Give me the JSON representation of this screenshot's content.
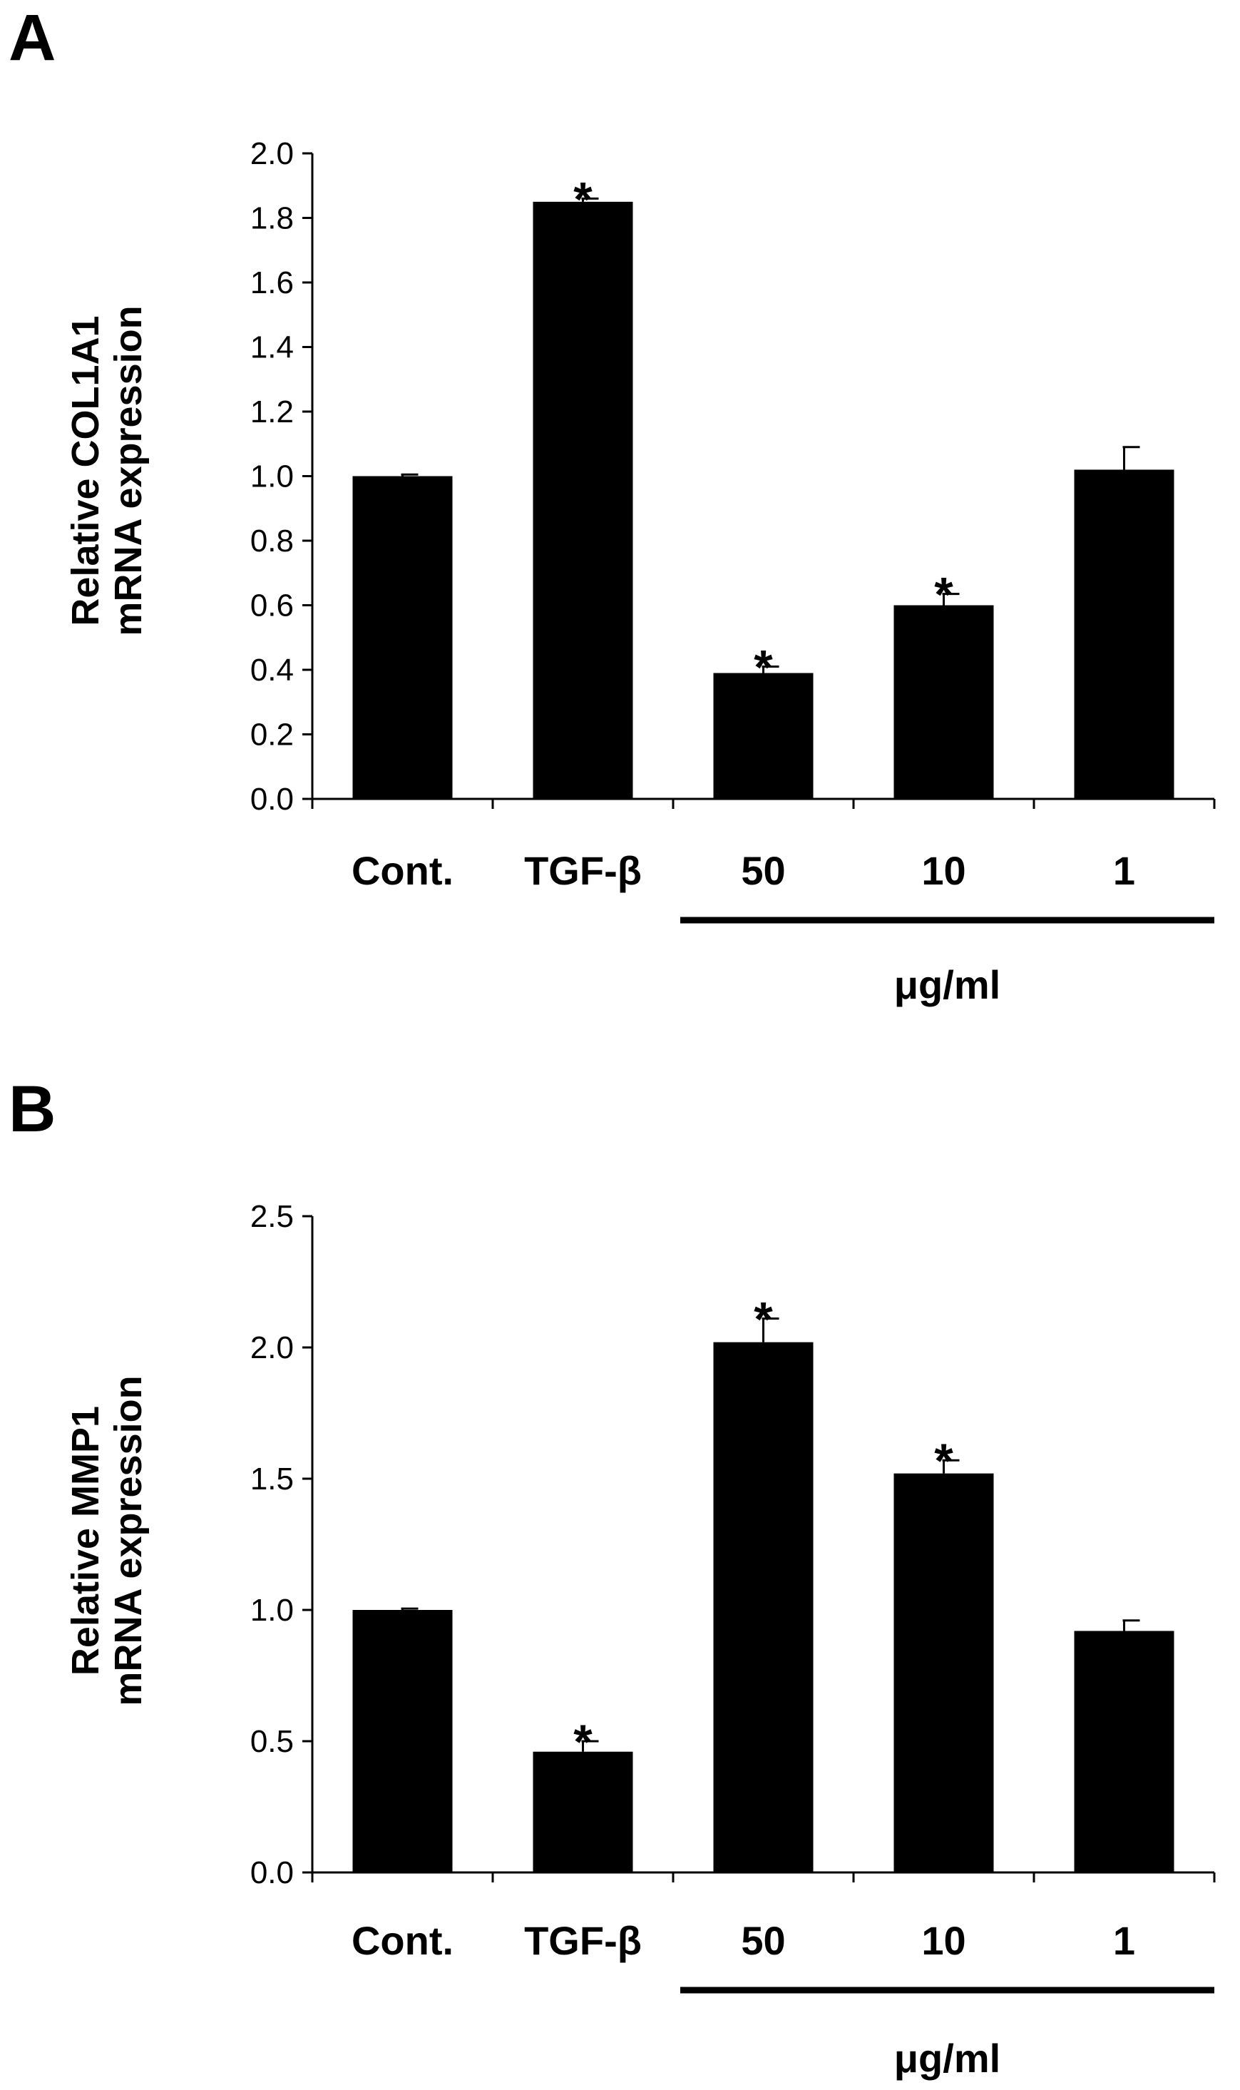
{
  "chart_data": [
    {
      "type": "bar",
      "panel": "A",
      "ylabel_lines": [
        "Relative COL1A1",
        "mRNA expression"
      ],
      "categories": [
        "Cont.",
        "TGF-β",
        "50",
        "10",
        "1"
      ],
      "values": [
        1.0,
        1.85,
        0.39,
        0.6,
        1.02
      ],
      "errors": [
        0.005,
        0.01,
        0.02,
        0.035,
        0.07
      ],
      "significance": [
        "",
        "*",
        "*",
        "*",
        ""
      ],
      "ylim": [
        0,
        2.0
      ],
      "yticks": [
        0.0,
        0.2,
        0.4,
        0.6,
        0.8,
        1.0,
        1.2,
        1.4,
        1.6,
        1.8,
        2.0
      ],
      "ytick_labels": [
        "0.0",
        "0.2",
        "0.4",
        "0.6",
        "0.8",
        "1.0",
        "1.2",
        "1.4",
        "1.6",
        "1.8",
        "2.0"
      ],
      "dose_unit": "μg/ml",
      "bar_color": "#000000"
    },
    {
      "type": "bar",
      "panel": "B",
      "ylabel_lines": [
        "Relative MMP1",
        "mRNA expression"
      ],
      "categories": [
        "Cont.",
        "TGF-β",
        "50",
        "10",
        "1"
      ],
      "values": [
        1.0,
        0.46,
        2.02,
        1.52,
        0.92
      ],
      "errors": [
        0.005,
        0.04,
        0.09,
        0.05,
        0.04
      ],
      "significance": [
        "",
        "*",
        "*",
        "*",
        ""
      ],
      "ylim": [
        0,
        2.5
      ],
      "yticks": [
        0.0,
        0.5,
        1.0,
        1.5,
        2.0,
        2.5
      ],
      "ytick_labels": [
        "0.0",
        "0.5",
        "1.0",
        "1.5",
        "2.0",
        "2.5"
      ],
      "dose_unit": "μg/ml",
      "bar_color": "#000000"
    }
  ]
}
